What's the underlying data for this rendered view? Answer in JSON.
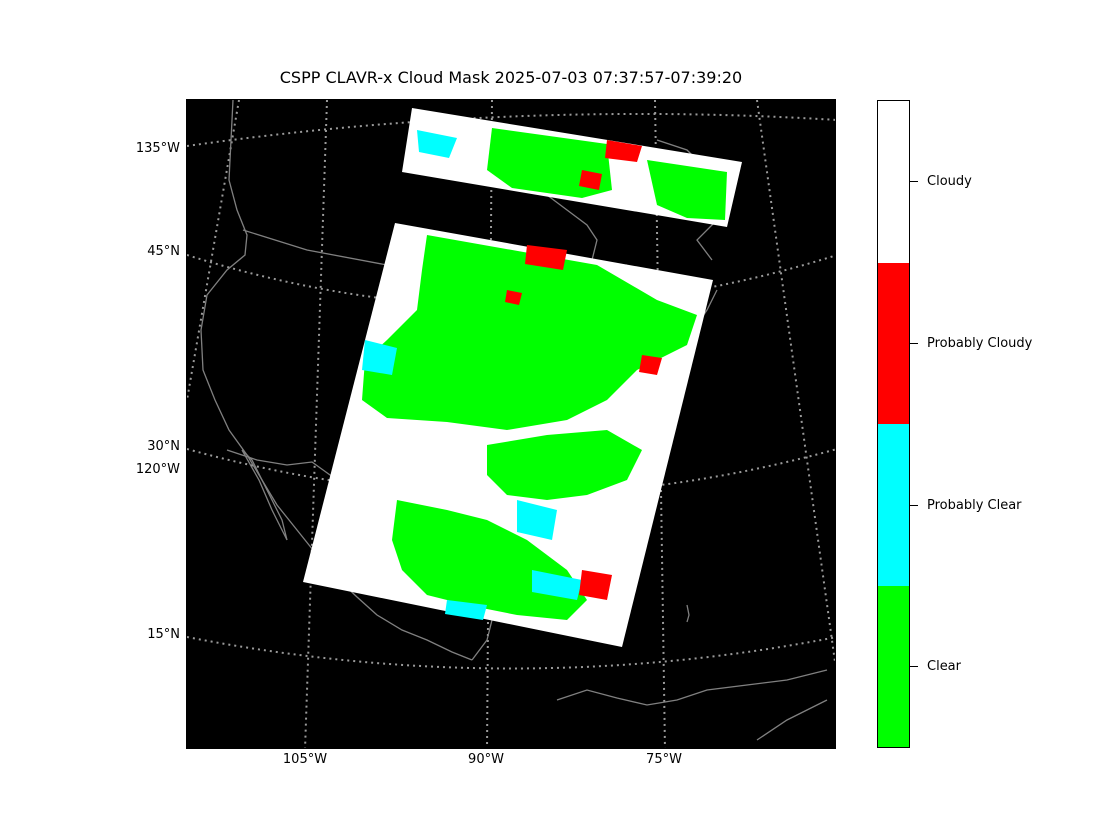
{
  "title": "CSPP CLAVR-x Cloud Mask 2025-07-03 07:37:57-07:39:20",
  "map": {
    "projection": "lambert-conformal",
    "background": "#000000",
    "coastline_color": "#808080",
    "graticule_color": "#9a9a9a",
    "lat_labels": [
      "45°N",
      "30°N",
      "15°N"
    ],
    "lon_labels_left": [
      "135°W",
      "120°W"
    ],
    "lon_labels_bottom": [
      "105°W",
      "90°W",
      "75°W"
    ]
  },
  "colorbar": {
    "categories": [
      {
        "label": "Cloudy",
        "color": "#ffffff"
      },
      {
        "label": "Probably Cloudy",
        "color": "#ff0000"
      },
      {
        "label": "Probably Clear",
        "color": "#00ffff"
      },
      {
        "label": "Clear",
        "color": "#00ff00"
      }
    ]
  }
}
